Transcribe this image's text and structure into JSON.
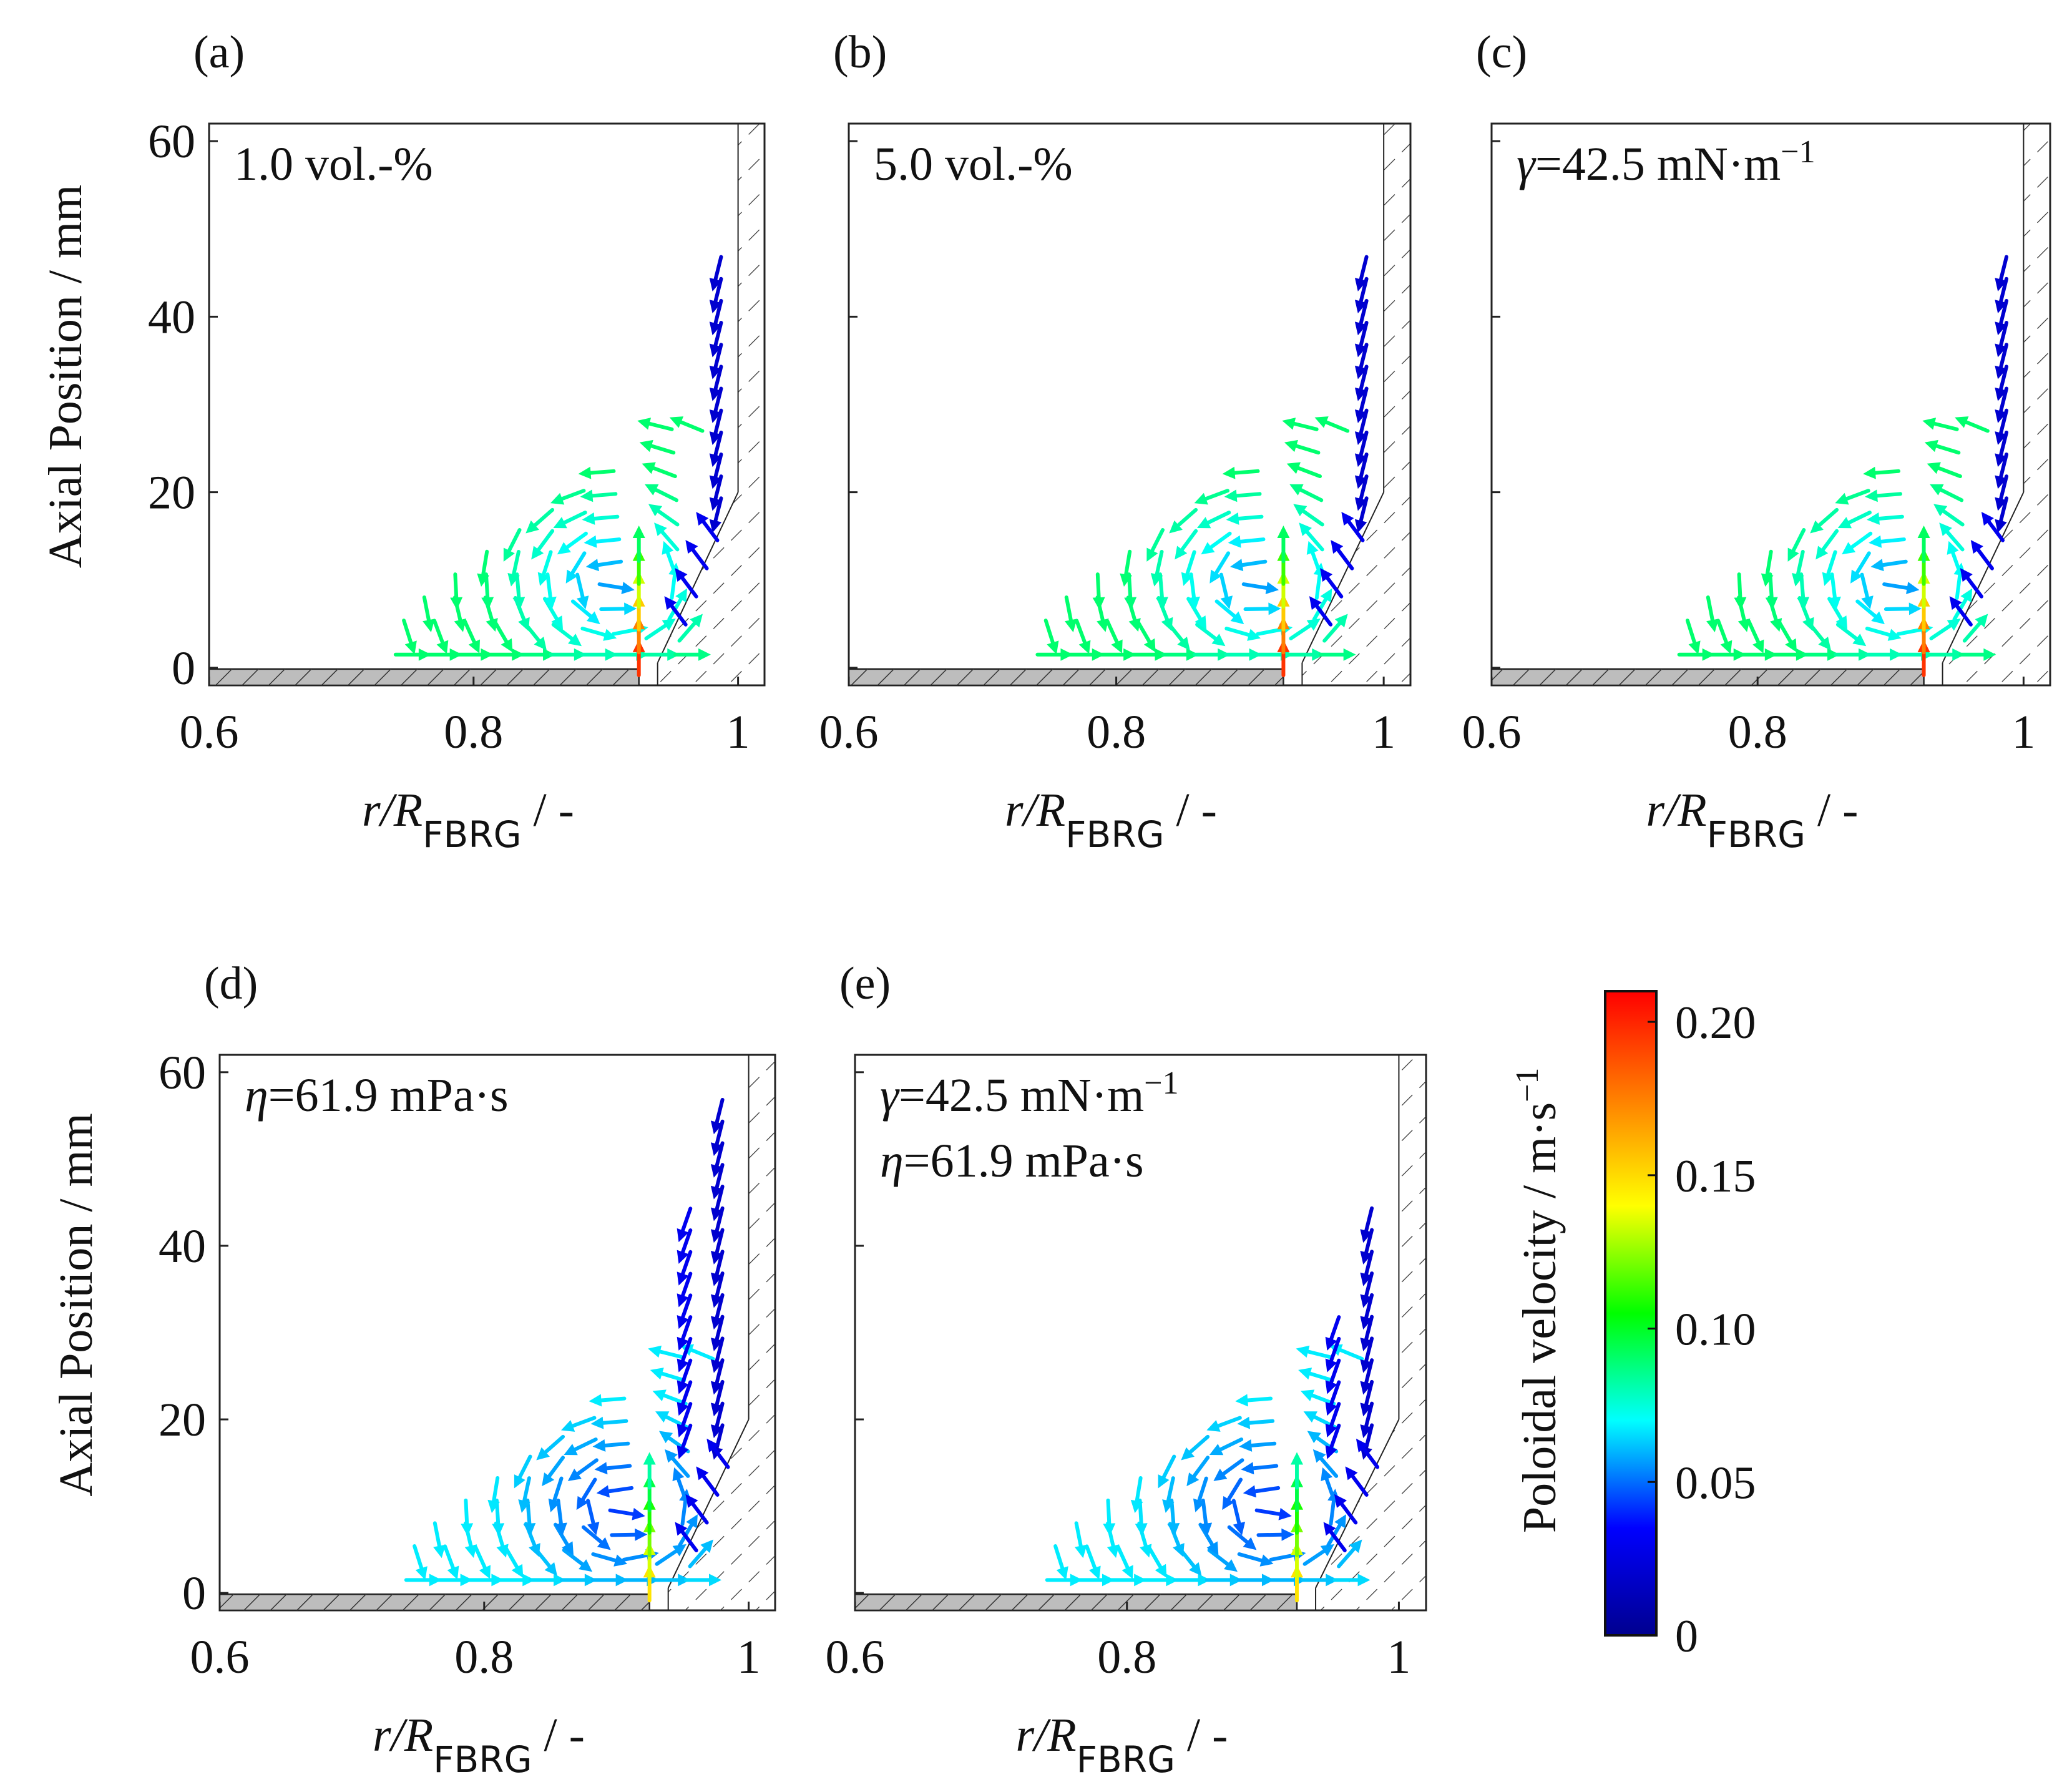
{
  "chart_data": [
    {
      "type": "scatter",
      "panel_label": "(a)",
      "annotations": [
        "1.0 vol.-%"
      ],
      "xlabel": {
        "base": "r/R",
        "sub": "FBRG",
        "tail": " / -"
      },
      "ylabel": "Axial Position / mm",
      "xlim": [
        0.6,
        1.02
      ],
      "ylim": [
        -2,
        62
      ],
      "x_ticks": [
        "0.6",
        "0.8",
        "1"
      ],
      "y_ticks": [
        "0",
        "20",
        "40",
        "60"
      ],
      "wall_inner_x": 1.0,
      "wall_cone_top_mm": 20,
      "pipe_end_x": 0.925,
      "max_height_mm": 46,
      "vortex_top_mm": 29
    },
    {
      "type": "scatter",
      "panel_label": "(b)",
      "annotations": [
        "5.0 vol.-%"
      ],
      "xlabel": {
        "base": "r/R",
        "sub": "FBRG",
        "tail": " / -"
      },
      "ylabel": "",
      "xlim": [
        0.6,
        1.02
      ],
      "ylim": [
        -2,
        62
      ],
      "x_ticks": [
        "0.6",
        "0.8",
        "1"
      ],
      "y_ticks": [
        "0",
        "20",
        "40",
        "60"
      ],
      "wall_inner_x": 1.0,
      "wall_cone_top_mm": 20,
      "pipe_end_x": 0.925,
      "max_height_mm": 46,
      "vortex_top_mm": 29
    },
    {
      "type": "scatter",
      "panel_label": "(c)",
      "annotations": [
        "γ=42.5 mN·m",
        "−1"
      ],
      "xlabel": {
        "base": "r/R",
        "sub": "FBRG",
        "tail": " / -"
      },
      "ylabel": "",
      "xlim": [
        0.6,
        1.02
      ],
      "ylim": [
        -2,
        62
      ],
      "x_ticks": [
        "0.6",
        "0.8",
        "1"
      ],
      "y_ticks": [
        "0",
        "20",
        "40",
        "60"
      ],
      "wall_inner_x": 1.0,
      "wall_cone_top_mm": 20,
      "pipe_end_x": 0.925,
      "max_height_mm": 46,
      "vortex_top_mm": 29
    },
    {
      "type": "scatter",
      "panel_label": "(d)",
      "annotations": [
        "η=61.9 mPa·s"
      ],
      "xlabel": {
        "base": "r/R",
        "sub": "FBRG",
        "tail": " / -"
      },
      "ylabel": "Axial Position / mm",
      "xlim": [
        0.6,
        1.02
      ],
      "ylim": [
        -2,
        62
      ],
      "x_ticks": [
        "0.6",
        "0.8",
        "1"
      ],
      "y_ticks": [
        "0",
        "20",
        "40",
        "60"
      ],
      "wall_inner_x": 1.0,
      "wall_cone_top_mm": 20,
      "pipe_end_x": 0.925,
      "max_height_mm": 57,
      "vortex_top_mm": 29
    },
    {
      "type": "scatter",
      "panel_label": "(e)",
      "annotations": [
        "γ=42.5 mN·m",
        "−1",
        "η=61.9 mPa·s"
      ],
      "xlabel": {
        "base": "r/R",
        "sub": "FBRG",
        "tail": " / -"
      },
      "ylabel": "",
      "xlim": [
        0.6,
        1.02
      ],
      "ylim": [
        -2,
        62
      ],
      "x_ticks": [
        "0.6",
        "0.8",
        "1"
      ],
      "y_ticks": [
        "0",
        "20",
        "40",
        "60"
      ],
      "wall_inner_x": 1.0,
      "wall_cone_top_mm": 20,
      "pipe_end_x": 0.925,
      "max_height_mm": 44,
      "vortex_top_mm": 29
    }
  ],
  "colorbar": {
    "label": "Poloidal velocity / m·s",
    "label_sup": "−1",
    "min": 0,
    "max": 0.21,
    "ticks": [
      "0",
      "0.05",
      "0.10",
      "0.15",
      "0.20"
    ],
    "tick_values": [
      0,
      0.05,
      0.1,
      0.15,
      0.2
    ],
    "colormap": [
      "#00008f",
      "#0000ff",
      "#00ffff",
      "#00ff00",
      "#ffff00",
      "#ff7f00",
      "#ff0000"
    ]
  }
}
